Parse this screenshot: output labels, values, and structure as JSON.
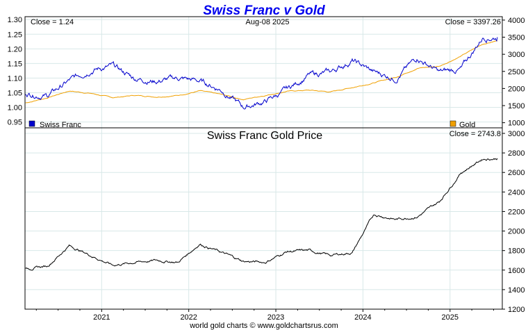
{
  "chart_data": [
    {
      "type": "line",
      "title": "Swiss Franc v Gold",
      "date": "Aug-08  2025",
      "left_close_label": "Close = 1.24",
      "right_close_label": "Close = 3397.26",
      "x": [
        "2020-03",
        "2020-06",
        "2020-09",
        "2020-12",
        "2021-03",
        "2021-06",
        "2021-09",
        "2021-12",
        "2022-03",
        "2022-06",
        "2022-09",
        "2022-12",
        "2023-03",
        "2023-06",
        "2023-09",
        "2023-12",
        "2024-03",
        "2024-06",
        "2024-09",
        "2024-12",
        "2025-03",
        "2025-06",
        "2025-08"
      ],
      "x_ticks": [
        "2021",
        "2022",
        "2023",
        "2024",
        "2025"
      ],
      "y_left_ticks": [
        "1.30",
        "1.25",
        "1.20",
        "1.15",
        "1.10",
        "1.05",
        "1.00",
        "0.95"
      ],
      "y_right_ticks": [
        "4000",
        "3500",
        "3000",
        "2500",
        "2000",
        "1500",
        "1000"
      ],
      "y_left_lim": [
        0.93,
        1.31
      ],
      "y_right_lim": [
        850,
        4100
      ],
      "grid": true,
      "series": [
        {
          "name": "Swiss Franc",
          "axis": "left",
          "color": "#0000cc",
          "values": [
            1.05,
            1.04,
            1.09,
            1.13,
            1.14,
            1.1,
            1.09,
            1.1,
            1.09,
            1.06,
            1.0,
            1.02,
            1.06,
            1.11,
            1.12,
            1.16,
            1.12,
            1.1,
            1.17,
            1.12,
            1.13,
            1.24,
            1.24
          ]
        },
        {
          "name": "Gold",
          "axis": "right",
          "color": "#f0a000",
          "values": [
            1580,
            1730,
            1930,
            1860,
            1730,
            1800,
            1760,
            1800,
            1930,
            1820,
            1680,
            1800,
            1920,
            1950,
            1900,
            2030,
            2170,
            2330,
            2600,
            2650,
            2950,
            3300,
            3397
          ]
        }
      ]
    },
    {
      "type": "line",
      "title": "Swiss Franc Gold Price",
      "close_label": "Close = 2743.8",
      "x": [
        "2020-03",
        "2020-06",
        "2020-09",
        "2020-12",
        "2021-03",
        "2021-06",
        "2021-09",
        "2021-12",
        "2022-03",
        "2022-06",
        "2022-09",
        "2022-12",
        "2023-03",
        "2023-06",
        "2023-09",
        "2023-12",
        "2024-03",
        "2024-06",
        "2024-09",
        "2024-12",
        "2025-03",
        "2025-06",
        "2025-08"
      ],
      "y_ticks": [
        "3000",
        "2800",
        "2600",
        "2400",
        "2200",
        "2000",
        "1800",
        "1600",
        "1400",
        "1200"
      ],
      "ylim": [
        1200,
        3000
      ],
      "grid": true,
      "footer": "world gold charts © www.goldchartsrus.com",
      "series": [
        {
          "color": "#000000",
          "values": [
            1610,
            1640,
            1850,
            1750,
            1650,
            1680,
            1700,
            1680,
            1870,
            1780,
            1690,
            1680,
            1790,
            1800,
            1750,
            1780,
            2170,
            2120,
            2150,
            2300,
            2600,
            2740,
            2744
          ]
        }
      ]
    }
  ]
}
